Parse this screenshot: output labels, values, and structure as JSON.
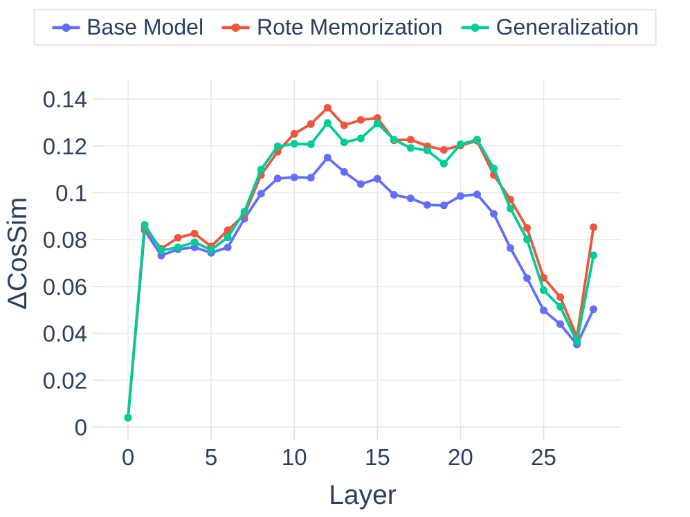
{
  "legend": {
    "items": [
      {
        "label": "Base Model",
        "color": "#636EFA"
      },
      {
        "label": "Rote Memorization",
        "color": "#EF553B"
      },
      {
        "label": "Generalization",
        "color": "#00CC96"
      }
    ]
  },
  "axes": {
    "x": {
      "title": "Layer",
      "tick_values": [
        0,
        5,
        10,
        15,
        20,
        25
      ],
      "tick_labels": [
        "0",
        "5",
        "10",
        "15",
        "20",
        "25"
      ]
    },
    "y": {
      "title": "ΔCosSim",
      "tick_values": [
        0,
        0.02,
        0.04,
        0.06,
        0.08,
        0.1,
        0.12,
        0.14
      ],
      "tick_labels": [
        "0",
        "0.02",
        "0.04",
        "0.06",
        "0.08",
        "0.1",
        "0.12",
        "0.14"
      ]
    }
  },
  "style": {
    "grid_color": "#e9e9e9",
    "tick_color": "#e2e2e2",
    "text_color": "#2a3f5f",
    "background": "#ffffff",
    "legend_border": "#e4e4e4"
  },
  "chart_data": {
    "type": "line",
    "title": "",
    "xlabel": "Layer",
    "ylabel": "ΔCosSim",
    "x": [
      0,
      1,
      2,
      3,
      4,
      5,
      6,
      7,
      8,
      9,
      10,
      11,
      12,
      13,
      14,
      15,
      16,
      17,
      18,
      19,
      20,
      21,
      22,
      23,
      24,
      25,
      26,
      27,
      28
    ],
    "series": [
      {
        "name": "Base Model",
        "color": "#636EFA",
        "values": [
          0.004,
          0.084,
          0.0732,
          0.0759,
          0.0767,
          0.0744,
          0.0767,
          0.0889,
          0.0996,
          0.1061,
          0.1066,
          0.1064,
          0.115,
          0.1089,
          0.1037,
          0.106,
          0.0991,
          0.0976,
          0.0948,
          0.0946,
          0.0986,
          0.0993,
          0.091,
          0.0764,
          0.0636,
          0.0498,
          0.0439,
          0.0352,
          0.0503
        ]
      },
      {
        "name": "Rote Memorization",
        "color": "#EF553B",
        "values": [
          0.004,
          0.085,
          0.0761,
          0.0808,
          0.0826,
          0.0771,
          0.084,
          0.0907,
          0.1076,
          0.1175,
          0.1252,
          0.1293,
          0.1363,
          0.1288,
          0.1311,
          0.1319,
          0.1224,
          0.1227,
          0.1199,
          0.1183,
          0.1202,
          0.1222,
          0.1076,
          0.0971,
          0.085,
          0.0637,
          0.0554,
          0.0385,
          0.0853
        ]
      },
      {
        "name": "Generalization",
        "color": "#00CC96",
        "values": [
          0.004,
          0.0863,
          0.0754,
          0.0767,
          0.0789,
          0.0756,
          0.081,
          0.0919,
          0.1099,
          0.1198,
          0.1209,
          0.1207,
          0.1298,
          0.1215,
          0.1232,
          0.1296,
          0.1227,
          0.1191,
          0.1181,
          0.1124,
          0.1207,
          0.1227,
          0.1104,
          0.0933,
          0.0801,
          0.0584,
          0.0513,
          0.0365,
          0.0733
        ]
      }
    ],
    "xlim": [
      -1.46,
      29.68
    ],
    "ylim": [
      0,
      0.1483
    ],
    "grid": true,
    "legend_position": "top"
  }
}
